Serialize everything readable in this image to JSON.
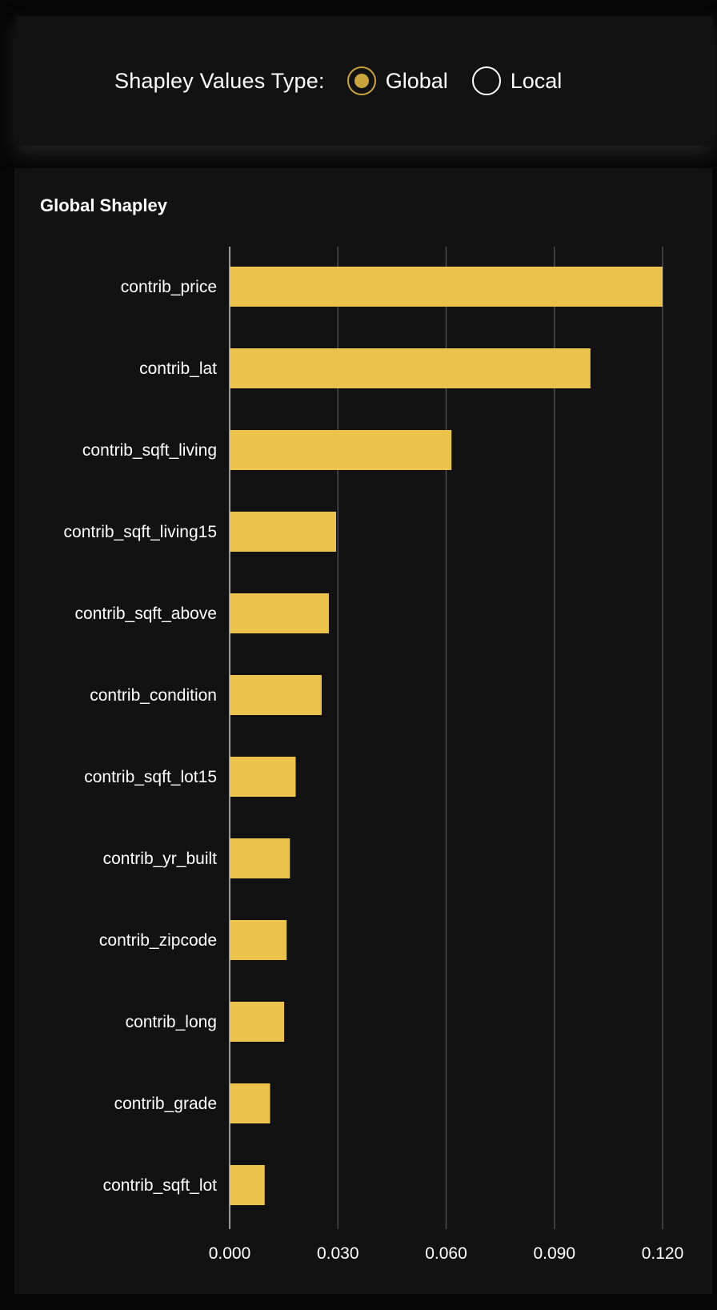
{
  "controls": {
    "label": "Shapley Values Type:",
    "options": [
      {
        "label": "Global",
        "selected": true
      },
      {
        "label": "Local",
        "selected": false
      }
    ],
    "accent_color": "#c9a43e"
  },
  "chart_data": {
    "type": "bar",
    "orientation": "horizontal",
    "title": "Global Shapley",
    "categories": [
      "contrib_price",
      "contrib_lat",
      "contrib_sqft_living",
      "contrib_sqft_living15",
      "contrib_sqft_above",
      "contrib_condition",
      "contrib_sqft_lot15",
      "contrib_yr_built",
      "contrib_zipcode",
      "contrib_long",
      "contrib_grade",
      "contrib_sqft_lot"
    ],
    "values": [
      0.12,
      0.1,
      0.0615,
      0.0295,
      0.0275,
      0.0255,
      0.0183,
      0.0167,
      0.0158,
      0.0151,
      0.0112,
      0.0097
    ],
    "xlim": [
      0,
      0.12
    ],
    "xticks": [
      "0.000",
      "0.030",
      "0.060",
      "0.090",
      "0.120"
    ],
    "xtick_values": [
      0,
      0.03,
      0.06,
      0.09,
      0.12
    ],
    "grid": true,
    "bar_color": "#ebc24b"
  }
}
